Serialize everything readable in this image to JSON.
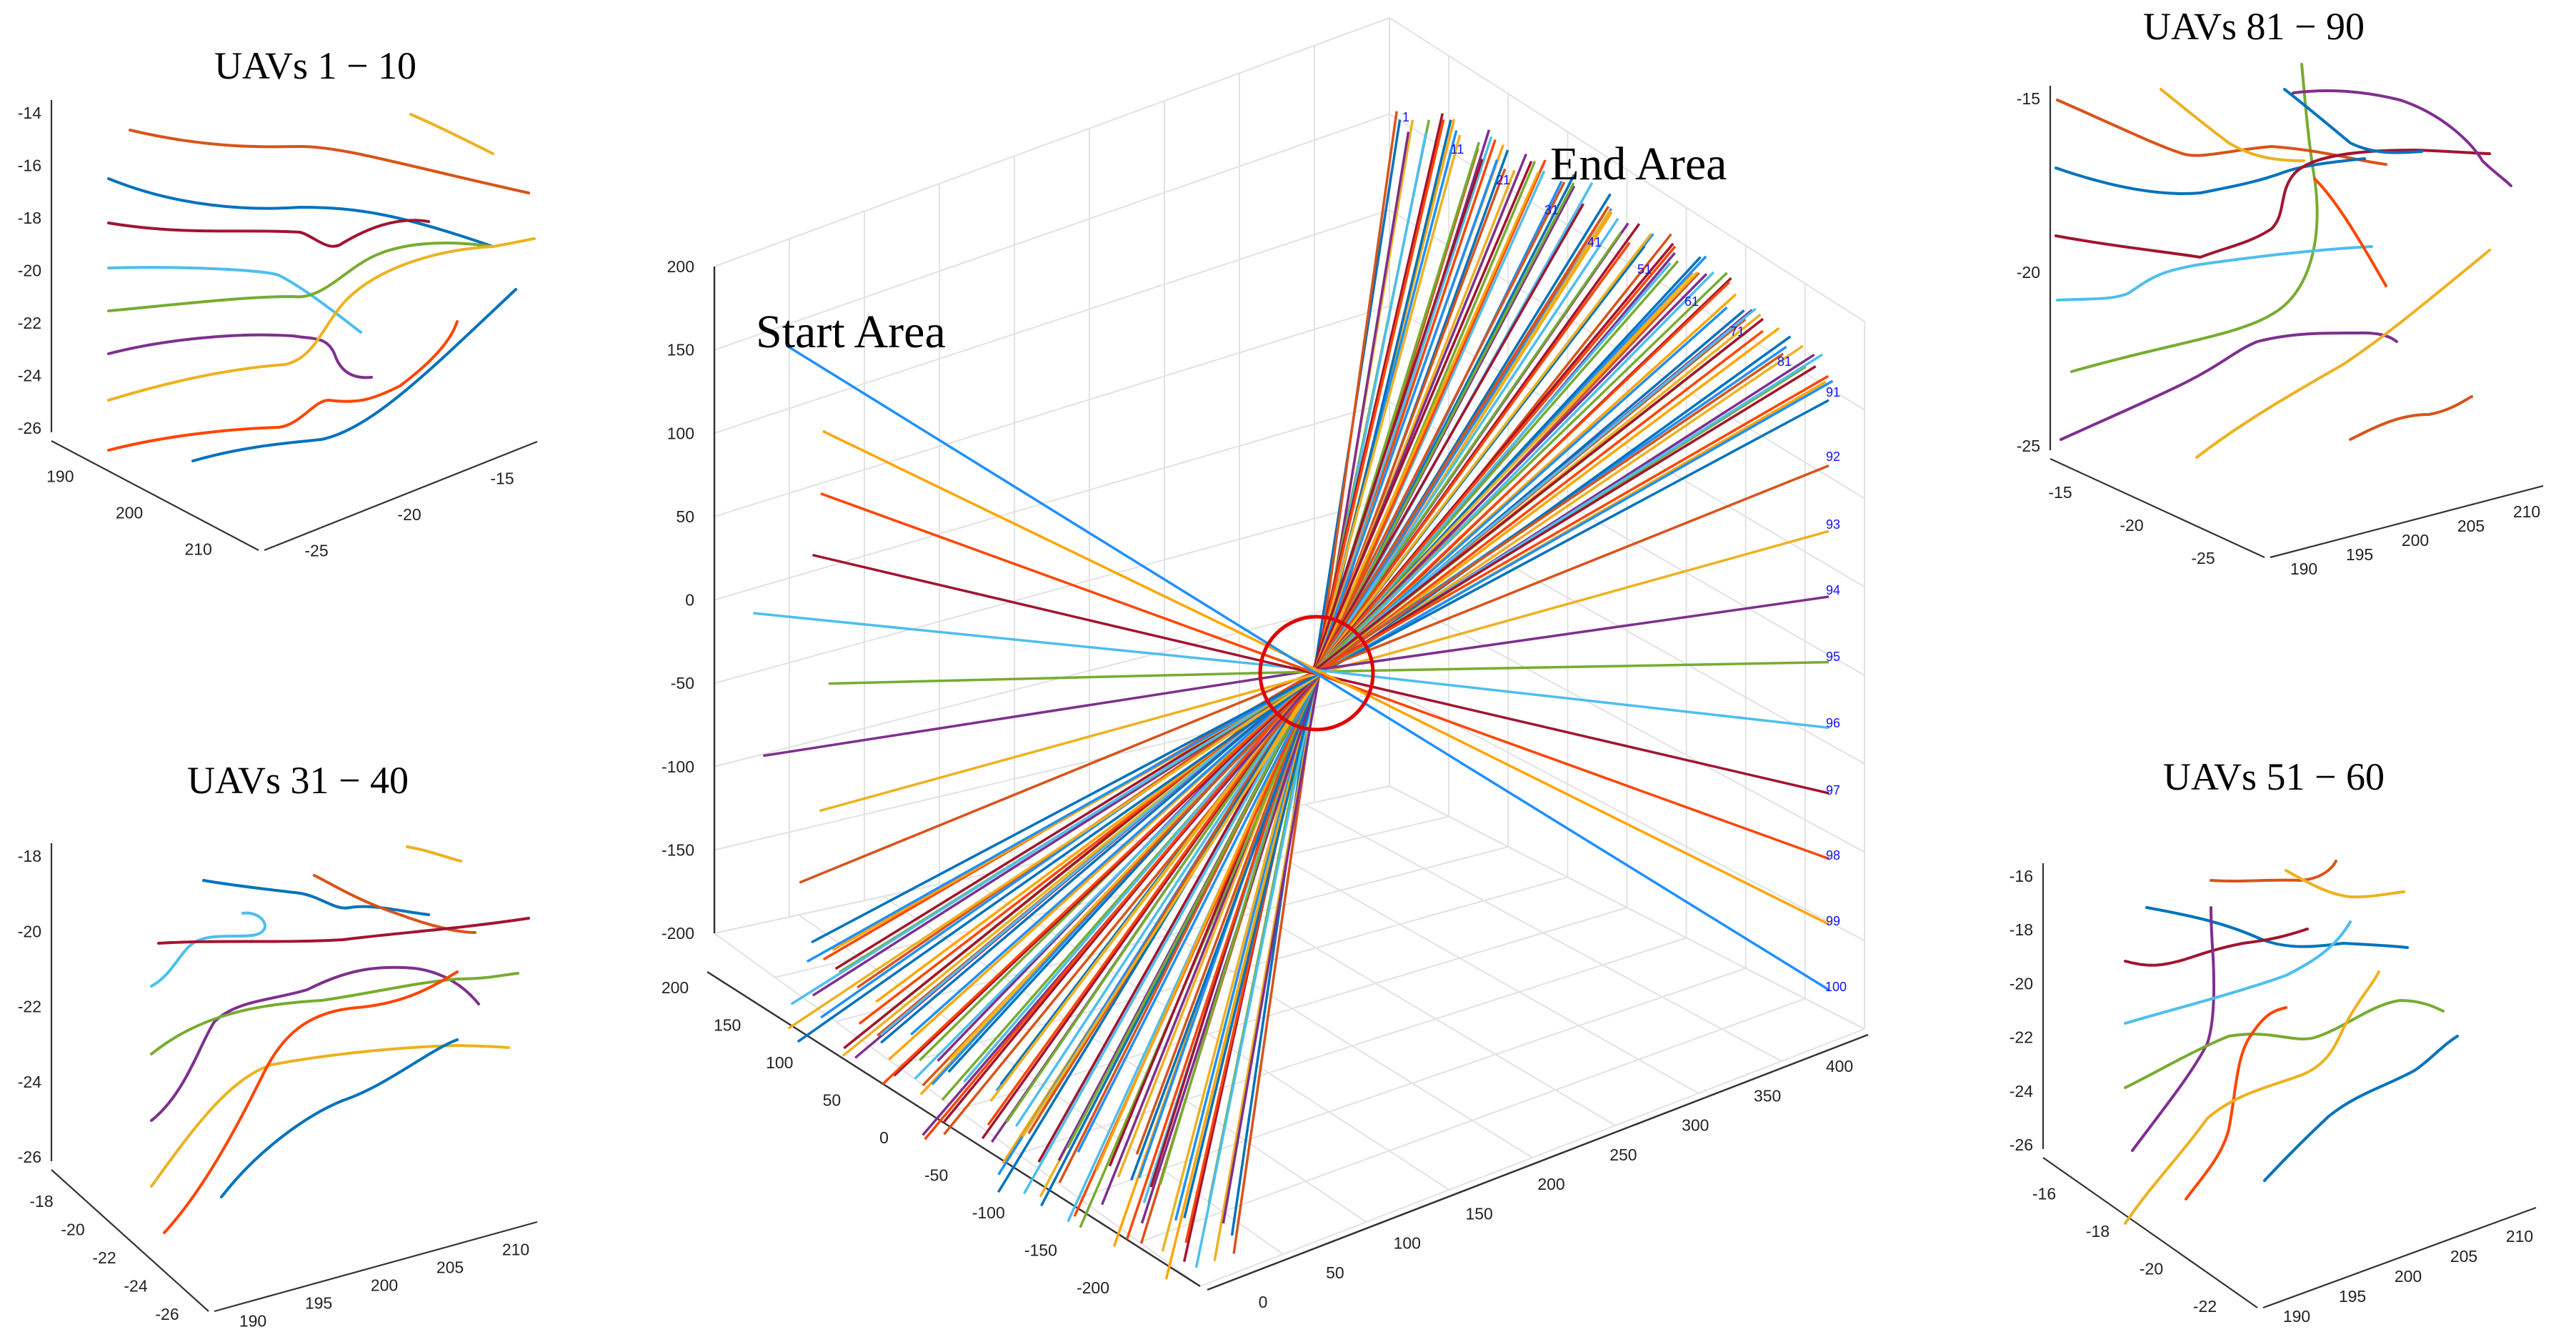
{
  "colors": [
    "#0072BD",
    "#D95319",
    "#EDB120",
    "#7E2F8E",
    "#77AC30",
    "#4DBEEE",
    "#A2142F",
    "#FF4500",
    "#FFA500",
    "#1E90FF"
  ],
  "chart_data": [
    {
      "type": "line",
      "subtype": "3d-trajectories",
      "panel": "main",
      "title": "",
      "annotations": [
        "Start Area",
        "End Area"
      ],
      "x_ticks": [
        "0",
        "50",
        "100",
        "150",
        "200",
        "250",
        "300",
        "350",
        "400"
      ],
      "y_ticks": [
        "-200",
        "-150",
        "-100",
        "-50",
        "0",
        "50",
        "100",
        "150",
        "200"
      ],
      "z_ticks": [
        "-200",
        "-150",
        "-100",
        "-50",
        "0",
        "50",
        "100",
        "150",
        "200"
      ],
      "uav_labels": [
        "1",
        "11",
        "21",
        "31",
        "41",
        "51",
        "61",
        "71",
        "81",
        "91",
        "92",
        "93",
        "94",
        "95",
        "96",
        "97",
        "98",
        "99",
        "100"
      ],
      "convergence_marker": "circle",
      "uav_count": 100
    },
    {
      "type": "line",
      "subtype": "3d-trajectories",
      "panel": "zoom",
      "title": "UAVs 1 − 10",
      "z_ticks": [
        "-14",
        "-16",
        "-18",
        "-20",
        "-22",
        "-24",
        "-26"
      ],
      "x_ticks": [
        "190",
        "200",
        "210"
      ],
      "y_ticks": [
        "-25",
        "-20",
        "-15"
      ]
    },
    {
      "type": "line",
      "subtype": "3d-trajectories",
      "panel": "zoom",
      "title": "UAVs 31 − 40",
      "z_ticks": [
        "-18",
        "-20",
        "-22",
        "-24",
        "-26"
      ],
      "x_ticks": [
        "-18",
        "-20",
        "-22",
        "-24",
        "-26"
      ],
      "y_ticks": [
        "190",
        "195",
        "200",
        "205",
        "210"
      ]
    },
    {
      "type": "line",
      "subtype": "3d-trajectories",
      "panel": "zoom",
      "title": "UAVs 81 − 90",
      "z_ticks": [
        "-15",
        "-20",
        "-25"
      ],
      "x_ticks": [
        "-15",
        "-20",
        "-25"
      ],
      "y_ticks": [
        "190",
        "195",
        "200",
        "205",
        "210"
      ]
    },
    {
      "type": "line",
      "subtype": "3d-trajectories",
      "panel": "zoom",
      "title": "UAVs 51 − 60",
      "z_ticks": [
        "-16",
        "-18",
        "-20",
        "-22",
        "-24",
        "-26"
      ],
      "x_ticks": [
        "-16",
        "-18",
        "-20",
        "-22"
      ],
      "y_ticks": [
        "190",
        "195",
        "200",
        "205",
        "210"
      ]
    }
  ]
}
